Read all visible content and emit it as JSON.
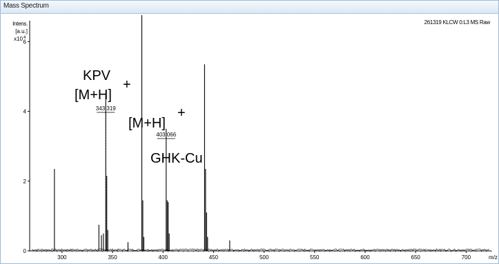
{
  "window": {
    "title": "Mass Spectrum"
  },
  "chart_data": {
    "type": "line",
    "spectrum_name": "261319 KLCW 0:L3 MS Raw",
    "ylabel_lines": [
      "Intens.",
      "[a.u.]"
    ],
    "y_multiplier": "x10",
    "y_multiplier_exp": "4",
    "xlabel": "m/z",
    "xlim": [
      268,
      725
    ],
    "ylim": [
      0,
      6.6
    ],
    "x_ticks": [
      300,
      350,
      400,
      450,
      500,
      550,
      600,
      650,
      700,
      750
    ],
    "y_ticks": [
      0,
      2,
      4,
      6
    ],
    "peaks": [
      {
        "x": 292.5,
        "y": 2.35
      },
      {
        "x": 336.5,
        "y": 0.75
      },
      {
        "x": 339.0,
        "y": 0.45
      },
      {
        "x": 341.0,
        "y": 0.5
      },
      {
        "x": 343.3,
        "y": 4.45
      },
      {
        "x": 344.3,
        "y": 2.15
      },
      {
        "x": 345.3,
        "y": 0.6
      },
      {
        "x": 365.3,
        "y": 0.25
      },
      {
        "x": 379.0,
        "y": 6.8
      },
      {
        "x": 380.0,
        "y": 1.45
      },
      {
        "x": 381.0,
        "y": 0.4
      },
      {
        "x": 403.1,
        "y": 3.5
      },
      {
        "x": 404.1,
        "y": 1.45
      },
      {
        "x": 405.1,
        "y": 1.4
      },
      {
        "x": 406.1,
        "y": 0.5
      },
      {
        "x": 441.1,
        "y": 5.35
      },
      {
        "x": 442.1,
        "y": 2.35
      },
      {
        "x": 443.1,
        "y": 1.1
      },
      {
        "x": 444.1,
        "y": 0.4
      },
      {
        "x": 466.0,
        "y": 0.3
      }
    ],
    "peak_labels": [
      {
        "text": "343.319",
        "x": 343.319
      },
      {
        "text": "403.066",
        "x": 403.066
      }
    ],
    "annotations": {
      "kpv": "KPV",
      "mh1": "[M+H]",
      "plus1": "+",
      "mh2": "[M+H]",
      "plus2": "+",
      "ghk": "GHK-Cu"
    },
    "line_color": "#000000",
    "grid": false
  }
}
